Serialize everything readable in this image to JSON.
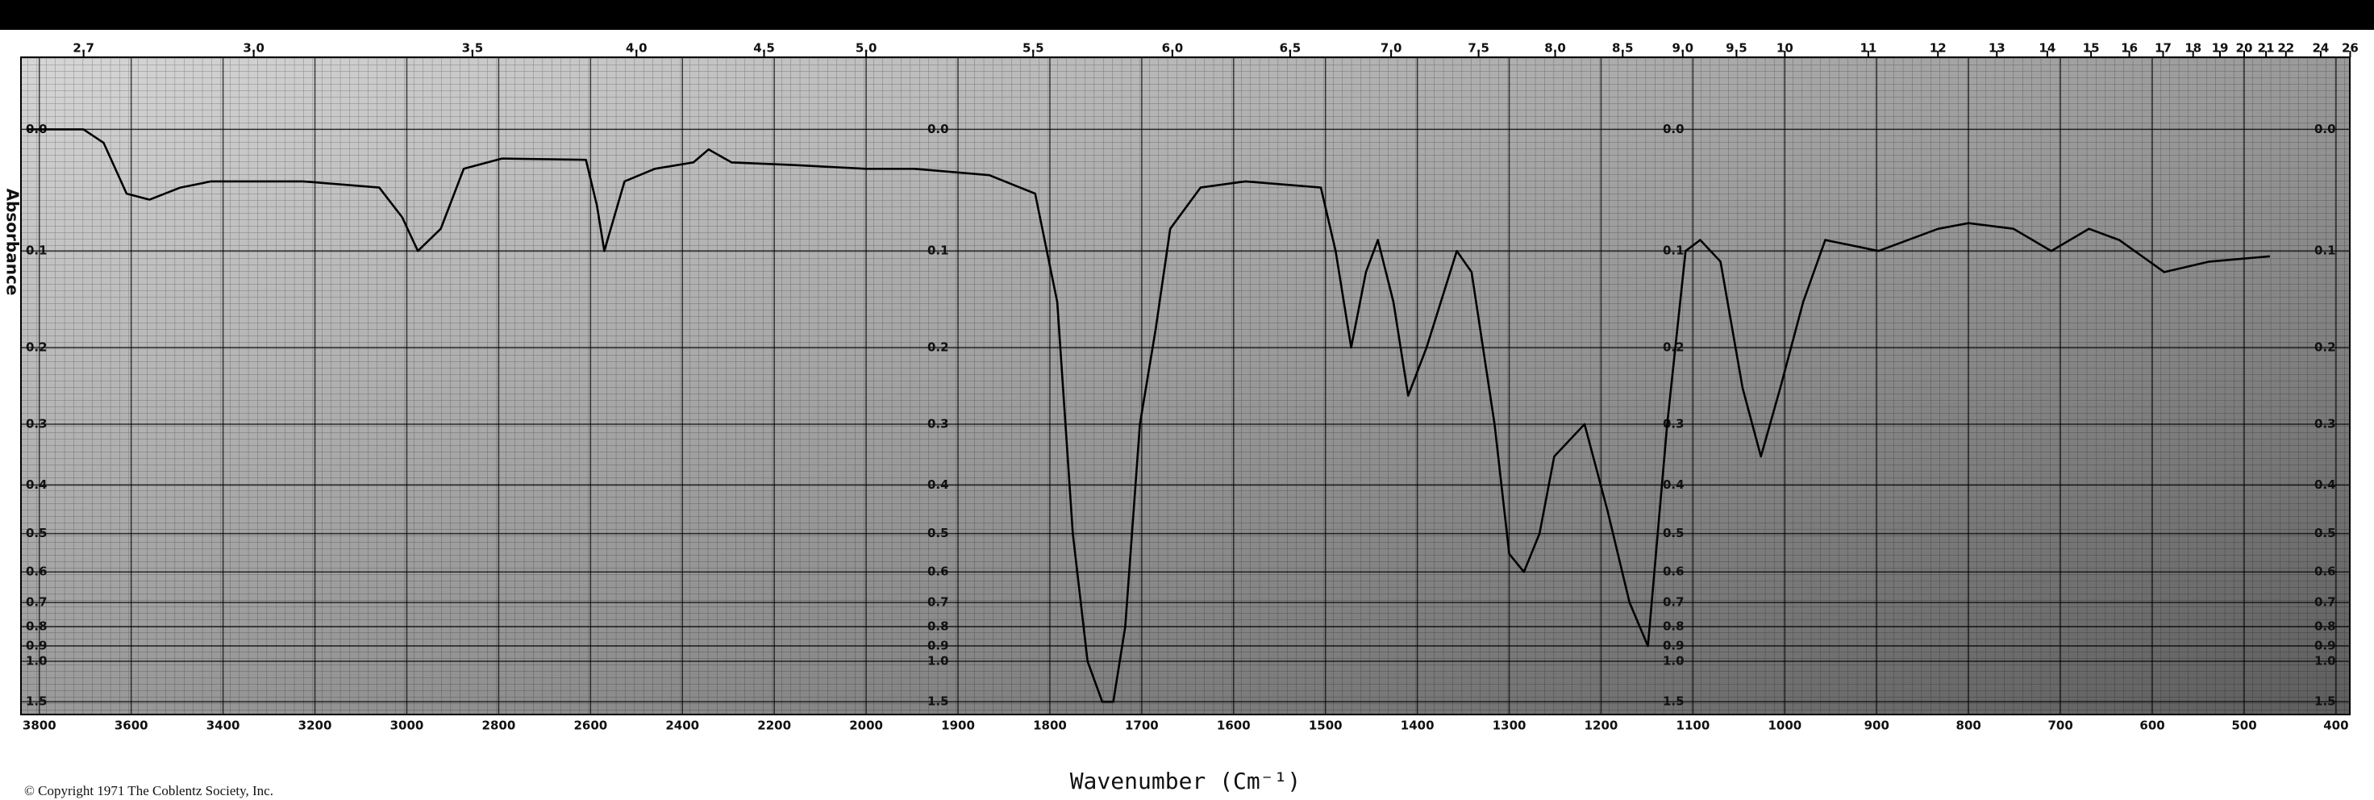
{
  "chart_data": {
    "type": "line",
    "xlabel": "Wavenumber (Cm⁻¹)",
    "ylabel": "Absorbance",
    "footer": "© Copyright 1971   The Coblentz Society, Inc.",
    "xlim": [
      3840,
      385
    ],
    "xbreak": 2000,
    "xticks": [
      3800,
      3600,
      3400,
      3200,
      3000,
      2800,
      2600,
      2400,
      2200,
      2000,
      1900,
      1800,
      1700,
      1600,
      1500,
      1400,
      1300,
      1200,
      1100,
      1000,
      900,
      800,
      700,
      600,
      500,
      400
    ],
    "x2scale": "wavelength_um",
    "x2ticks": [
      2.7,
      {
        "value": 3,
        "label": "3.0"
      },
      3.5,
      {
        "value": 4,
        "label": "4.0"
      },
      4.5,
      {
        "value": 5,
        "label": "5.0"
      },
      5.5,
      {
        "value": 6,
        "label": "6.0"
      },
      6.5,
      {
        "value": 7,
        "label": "7.0"
      },
      7.5,
      {
        "value": 8,
        "label": "8.0"
      },
      8.5,
      {
        "value": 9,
        "label": "9.0"
      },
      9.5,
      10,
      11,
      12,
      13,
      14,
      15,
      16,
      17,
      18,
      19,
      20,
      21,
      22,
      24,
      26
    ],
    "yscale": "transmittance",
    "ylim": [
      -0.05,
      2
    ],
    "yticks": [
      {
        "value": 0,
        "label": "0.0"
      },
      0.1,
      0.2,
      0.3,
      0.4,
      0.5,
      0.6,
      0.7,
      0.8,
      0.9,
      {
        "value": 1,
        "label": "1.0"
      },
      1.5
    ],
    "grid": true,
    "color": "#000000",
    "x": [
      3826,
      3704,
      3660,
      3610,
      3560,
      3493,
      3426,
      3226,
      3060,
      3010,
      2976,
      2926,
      2876,
      2793,
      2610,
      2586,
      2570,
      2526,
      2460,
      2376,
      2343,
      2293,
      2160,
      2000,
      1948,
      1866,
      1816,
      1792,
      1775,
      1759,
      1743,
      1731,
      1718,
      1702,
      1685,
      1669,
      1636,
      1587,
      1505,
      1489,
      1472,
      1456,
      1443,
      1426,
      1410,
      1390,
      1357,
      1341,
      1316,
      1300,
      1284,
      1267,
      1251,
      1218,
      1193,
      1169,
      1149,
      1128,
      1108,
      1092,
      1070,
      1046,
      1026,
      1005,
      980,
      956,
      898,
      833,
      800,
      751,
      710,
      669,
      636,
      587,
      538,
      472
    ],
    "values": [
      0.0,
      0.0,
      0.01,
      0.05,
      0.055,
      0.045,
      0.04,
      0.04,
      0.045,
      0.07,
      0.1,
      0.08,
      0.03,
      0.022,
      0.023,
      0.06,
      0.1,
      0.04,
      0.03,
      0.025,
      0.015,
      0.025,
      0.027,
      0.03,
      0.03,
      0.035,
      0.05,
      0.15,
      0.5,
      1.0,
      1.5,
      1.5,
      0.8,
      0.3,
      0.18,
      0.08,
      0.045,
      0.04,
      0.045,
      0.1,
      0.2,
      0.12,
      0.09,
      0.15,
      0.26,
      0.2,
      0.1,
      0.12,
      0.3,
      0.55,
      0.6,
      0.5,
      0.35,
      0.3,
      0.45,
      0.7,
      0.9,
      0.3,
      0.1,
      0.09,
      0.11,
      0.25,
      0.35,
      0.25,
      0.15,
      0.09,
      0.1,
      0.08,
      0.075,
      0.08,
      0.1,
      0.08,
      0.09,
      0.12,
      0.11,
      0.105
    ]
  }
}
